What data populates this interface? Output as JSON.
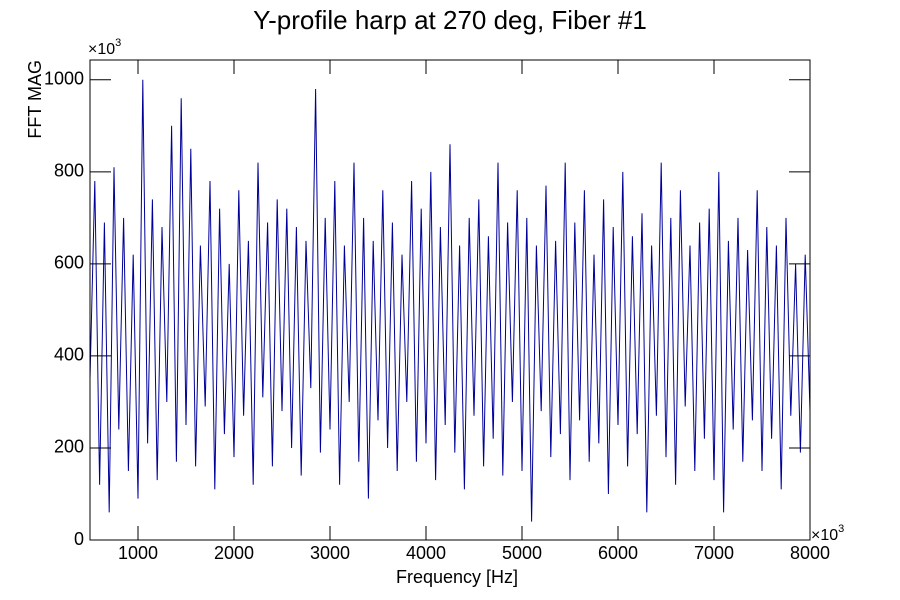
{
  "chart_data": {
    "type": "line",
    "title": "Y-profile harp at 270 deg, Fiber #1",
    "x_label": "Frequency [Hz]",
    "y_label": "FFT MAG",
    "x_multiplier": {
      "base": "×10",
      "power": "3"
    },
    "y_multiplier": {
      "base": "×10",
      "power": "3"
    },
    "xlim": [
      500,
      8000
    ],
    "ylim": [
      0,
      1043
    ],
    "xticks": [
      1000,
      2000,
      3000,
      4000,
      5000,
      6000,
      7000,
      8000
    ],
    "yticks": [
      0,
      200,
      400,
      600,
      800,
      1000
    ],
    "grid": false,
    "x": [
      500,
      550,
      600,
      650,
      700,
      750,
      800,
      850,
      900,
      950,
      1000,
      1050,
      1100,
      1150,
      1200,
      1250,
      1300,
      1350,
      1400,
      1450,
      1500,
      1550,
      1600,
      1650,
      1700,
      1750,
      1800,
      1850,
      1900,
      1950,
      2000,
      2050,
      2100,
      2150,
      2200,
      2250,
      2300,
      2350,
      2400,
      2450,
      2500,
      2550,
      2600,
      2650,
      2700,
      2750,
      2800,
      2850,
      2900,
      2950,
      3000,
      3050,
      3100,
      3150,
      3200,
      3250,
      3300,
      3350,
      3400,
      3450,
      3500,
      3550,
      3600,
      3650,
      3700,
      3750,
      3800,
      3850,
      3900,
      3950,
      4000,
      4050,
      4100,
      4150,
      4200,
      4250,
      4300,
      4350,
      4400,
      4450,
      4500,
      4550,
      4600,
      4650,
      4700,
      4750,
      4800,
      4850,
      4900,
      4950,
      5000,
      5050,
      5100,
      5150,
      5200,
      5250,
      5300,
      5350,
      5400,
      5450,
      5500,
      5550,
      5600,
      5650,
      5700,
      5750,
      5800,
      5850,
      5900,
      5950,
      6000,
      6050,
      6100,
      6150,
      6200,
      6250,
      6300,
      6350,
      6400,
      6450,
      6500,
      6550,
      6600,
      6650,
      6700,
      6750,
      6800,
      6850,
      6900,
      6950,
      7000,
      7050,
      7100,
      7150,
      7200,
      7250,
      7300,
      7350,
      7400,
      7450,
      7500,
      7550,
      7600,
      7650,
      7700,
      7750,
      7800,
      7850,
      7900,
      7950,
      8000
    ],
    "series": [
      {
        "color": "#000099",
        "values": [
          350,
          780,
          120,
          690,
          60,
          810,
          240,
          700,
          150,
          620,
          90,
          1000,
          210,
          740,
          130,
          680,
          300,
          900,
          170,
          960,
          250,
          850,
          160,
          640,
          290,
          780,
          110,
          720,
          230,
          600,
          180,
          760,
          270,
          650,
          120,
          820,
          310,
          690,
          160,
          740,
          280,
          720,
          200,
          680,
          140,
          650,
          330,
          980,
          190,
          700,
          240,
          780,
          120,
          640,
          300,
          820,
          170,
          700,
          90,
          650,
          260,
          760,
          200,
          690,
          150,
          620,
          300,
          780,
          170,
          720,
          210,
          800,
          130,
          680,
          250,
          860,
          190,
          640,
          110,
          700,
          270,
          740,
          160,
          660,
          220,
          820,
          140,
          690,
          300,
          760,
          150,
          700,
          40,
          640,
          280,
          770,
          180,
          650,
          230,
          820,
          130,
          690,
          260,
          760,
          170,
          620,
          210,
          740,
          100,
          680,
          250,
          800,
          160,
          660,
          230,
          710,
          60,
          640,
          270,
          820,
          180,
          700,
          120,
          760,
          290,
          640,
          150,
          690,
          220,
          720,
          130,
          800,
          60,
          650,
          240,
          700,
          170,
          630,
          260,
          760,
          150,
          680,
          220,
          640,
          110,
          700,
          270,
          600,
          190,
          620,
          280
        ]
      }
    ]
  }
}
